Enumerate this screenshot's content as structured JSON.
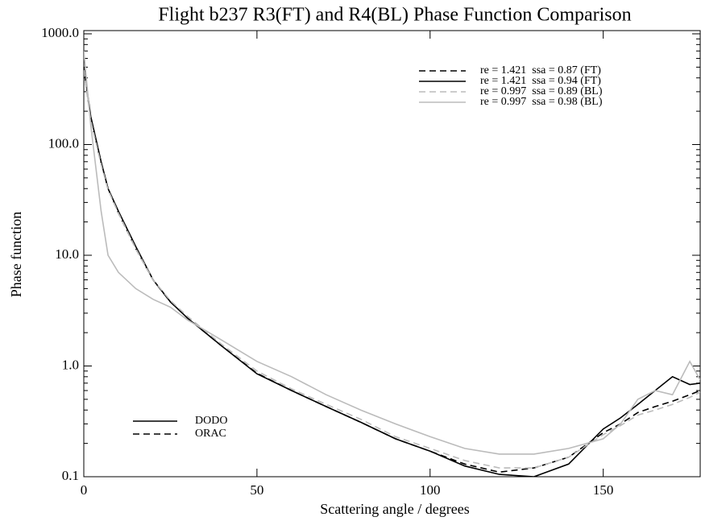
{
  "chart_data": {
    "type": "line",
    "title": "Flight b237 R3(FT) and R4(BL) Phase Function Comparison",
    "x_label": "Scattering angle / degrees",
    "y_label": "Phase function",
    "y_log": true,
    "xlim": [
      0,
      178
    ],
    "ylim": [
      0.1,
      1000
    ],
    "xticks": [
      0,
      50,
      100,
      150
    ],
    "yticks": [
      0.1,
      {
        "value": 1,
        "label": "1.0"
      },
      {
        "value": 10,
        "label": "10.0"
      },
      {
        "value": 100,
        "label": "100.0"
      },
      {
        "value": 1000,
        "label": "1000.0"
      }
    ],
    "x": [
      0,
      2,
      5,
      7,
      10,
      15,
      20,
      25,
      30,
      40,
      50,
      60,
      70,
      80,
      90,
      100,
      110,
      120,
      130,
      140,
      150,
      155,
      160,
      165,
      170,
      175,
      178
    ],
    "series": [
      {
        "name": "re = 1.421  ssa = 0.87 (FT)",
        "color": "#000000",
        "dash": true,
        "values": [
          480,
          170,
          68,
          40,
          24,
          11.5,
          6,
          3.8,
          2.7,
          1.5,
          0.86,
          0.6,
          0.43,
          0.31,
          0.22,
          0.17,
          0.13,
          0.11,
          0.12,
          0.15,
          0.25,
          0.3,
          0.38,
          0.43,
          0.48,
          0.55,
          0.6
        ]
      },
      {
        "name": "re = 1.421  ssa = 0.94 (FT)",
        "color": "#000000",
        "dash": false,
        "values": [
          500,
          180,
          70,
          40,
          25,
          12,
          6,
          3.8,
          2.7,
          1.5,
          0.85,
          0.6,
          0.43,
          0.31,
          0.22,
          0.17,
          0.125,
          0.105,
          0.1,
          0.13,
          0.27,
          0.34,
          0.45,
          0.6,
          0.8,
          0.68,
          0.7
        ]
      },
      {
        "name": "re = 0.997  ssa = 0.89 (BL)",
        "color": "#bbbbbb",
        "dash": true,
        "values": [
          470,
          165,
          66,
          39,
          24,
          11.5,
          6,
          3.9,
          2.8,
          1.55,
          0.9,
          0.62,
          0.45,
          0.33,
          0.23,
          0.18,
          0.14,
          0.12,
          0.12,
          0.15,
          0.24,
          0.29,
          0.36,
          0.4,
          0.45,
          0.52,
          0.58
        ]
      },
      {
        "name": "re = 0.997  ssa = 0.98 (BL)",
        "color": "#bbbbbb",
        "dash": false,
        "values": [
          700,
          150,
          25,
          10,
          7,
          5,
          4,
          3.4,
          2.6,
          1.7,
          1.1,
          0.8,
          0.55,
          0.4,
          0.3,
          0.23,
          0.18,
          0.16,
          0.16,
          0.18,
          0.22,
          0.3,
          0.5,
          0.6,
          0.55,
          1.1,
          0.75
        ]
      }
    ],
    "style_legend": [
      {
        "label": "DODO",
        "dash": false
      },
      {
        "label": "ORAC",
        "dash": true
      }
    ]
  }
}
